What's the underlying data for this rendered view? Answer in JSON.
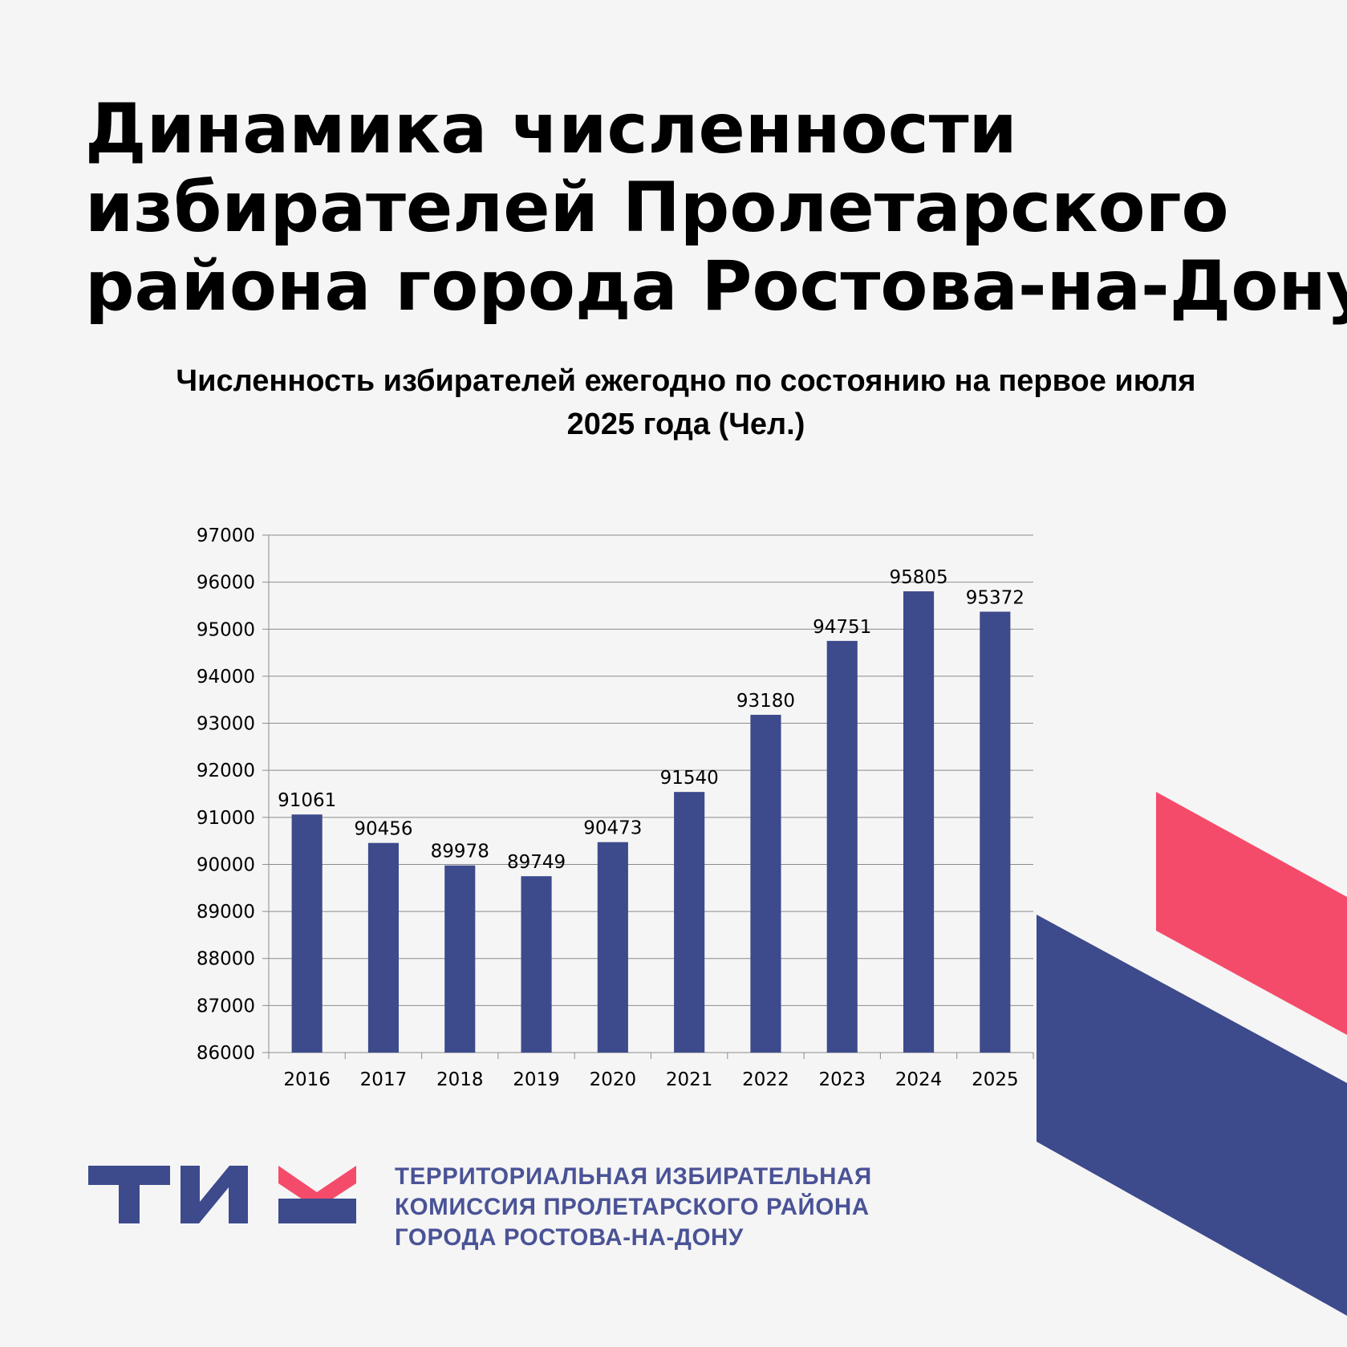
{
  "header": {
    "title_lines": [
      "Динамика численности",
      "избирателей Пролетарского",
      "района города Ростова-на-Дону"
    ]
  },
  "chart_data": {
    "type": "bar",
    "title": "Численность избирателей ежегодно по состоянию на первое июля 2025 года (Чел.)",
    "title_lines": [
      "Численность избирателей ежегодно по состоянию на первое июля",
      "2025 года (Чел.)"
    ],
    "categories": [
      "2016",
      "2017",
      "2018",
      "2019",
      "2020",
      "2021",
      "2022",
      "2023",
      "2024",
      "2025"
    ],
    "values": [
      91061,
      90456,
      89978,
      89749,
      90473,
      91540,
      93180,
      94751,
      95805,
      95372
    ],
    "xlabel": "",
    "ylabel": "",
    "ylim": [
      86000,
      97000
    ],
    "ytick_step": 1000,
    "grid": true,
    "data_labels": true,
    "bar_color": "#3d4a8c"
  },
  "footer": {
    "logo_text": "ТИК",
    "org_lines": [
      "ТЕРРИТОРИАЛЬНАЯ ИЗБИРАТЕЛЬНАЯ",
      "КОМИССИЯ ПРОЛЕТАРСКОГО РАЙОНА",
      "ГОРОДА РОСТОВА-НА-ДОНУ"
    ]
  },
  "colors": {
    "background": "#f5f5f5",
    "brand_blue": "#3d4a8c",
    "brand_pink": "#f54b6b",
    "org_text": "#4a5396"
  }
}
